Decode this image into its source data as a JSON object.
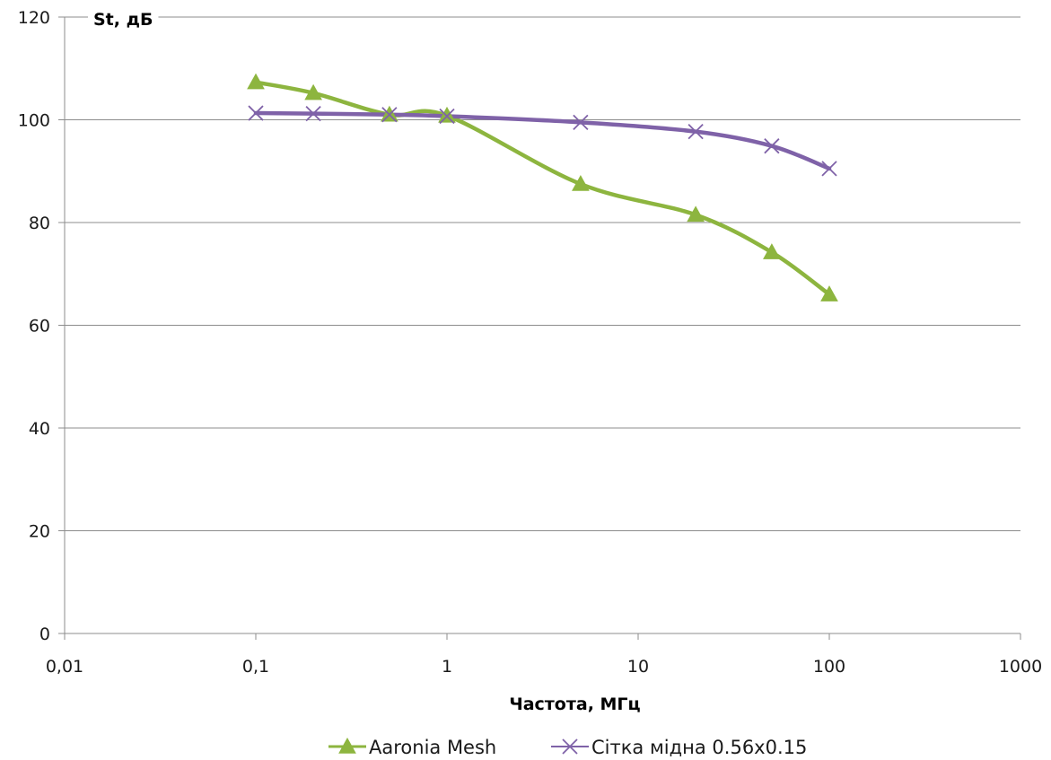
{
  "chart_data": {
    "type": "line",
    "x_scale": "log",
    "xlabel": "Частота, МГц",
    "ylabel": "St, дБ",
    "xlim": [
      0.01,
      1000
    ],
    "ylim": [
      0,
      120
    ],
    "x_ticks": [
      0.01,
      0.1,
      1,
      10,
      100,
      1000
    ],
    "x_tick_labels": [
      "0,01",
      "0,1",
      "1",
      "10",
      "100",
      "1000"
    ],
    "y_ticks": [
      0,
      20,
      40,
      60,
      80,
      100,
      120
    ],
    "y_tick_labels": [
      "0",
      "20",
      "40",
      "60",
      "80",
      "100",
      "120"
    ],
    "grid": "horizontal",
    "legend_position": "bottom",
    "series": [
      {
        "name": "Aaronia Mesh",
        "color": "#8db53f",
        "marker": "triangle",
        "x": [
          0.1,
          0.2,
          0.5,
          1,
          5,
          20,
          50,
          100
        ],
        "y": [
          107.3,
          105.2,
          101.0,
          100.8,
          87.5,
          81.5,
          74.2,
          66.0
        ]
      },
      {
        "name": "Сітка мідна 0.56х0.15",
        "color": "#7f62a8",
        "marker": "x",
        "x": [
          0.1,
          0.2,
          0.5,
          1,
          5,
          20,
          50,
          100
        ],
        "y": [
          101.3,
          101.2,
          101.0,
          100.7,
          99.5,
          97.7,
          94.9,
          90.5
        ]
      }
    ]
  }
}
